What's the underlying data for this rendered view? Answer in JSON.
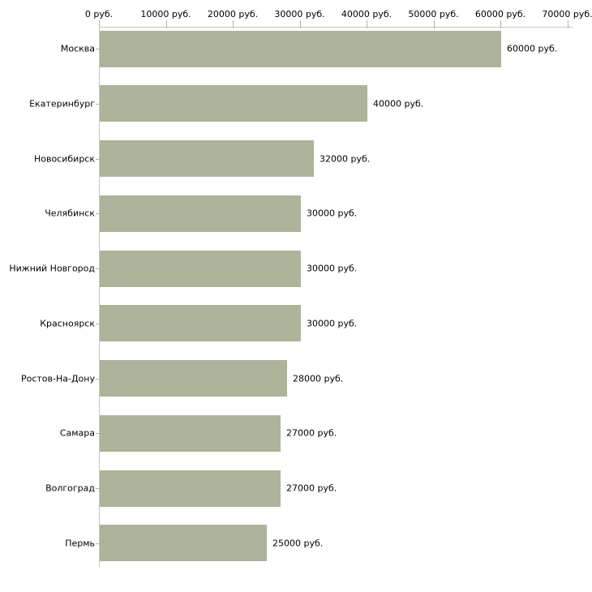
{
  "chart_data": {
    "type": "bar",
    "orientation": "horizontal",
    "title": "",
    "xlabel": "",
    "ylabel": "",
    "xlim": [
      0,
      70000
    ],
    "grid": false,
    "legend": "none",
    "x_tick_labels": [
      "0 руб.",
      "10000 руб.",
      "20000 руб.",
      "30000 руб.",
      "40000 руб.",
      "50000 руб.",
      "60000 руб.",
      "70000 руб."
    ],
    "x_tick_values": [
      0,
      10000,
      20000,
      30000,
      40000,
      50000,
      60000,
      70000
    ],
    "categories": [
      "Москва",
      "Екатеринбург",
      "Новосибирск",
      "Челябинск",
      "Нижний Новгород",
      "Красноярск",
      "Ростов-На-Дону",
      "Самара",
      "Волгоград",
      "Пермь"
    ],
    "values": [
      60000,
      40000,
      32000,
      30000,
      30000,
      30000,
      28000,
      27000,
      27000,
      25000
    ],
    "value_labels": [
      "60000 руб.",
      "40000 руб.",
      "32000 руб.",
      "30000 руб.",
      "30000 руб.",
      "30000 руб.",
      "28000 руб.",
      "27000 руб.",
      "27000 руб.",
      "25000 руб."
    ],
    "colors": {
      "bar": "#acb499",
      "axis_line": "#c9c9c1",
      "tick": "#b5b595",
      "text": "#000000",
      "background": "#ffffff"
    }
  }
}
